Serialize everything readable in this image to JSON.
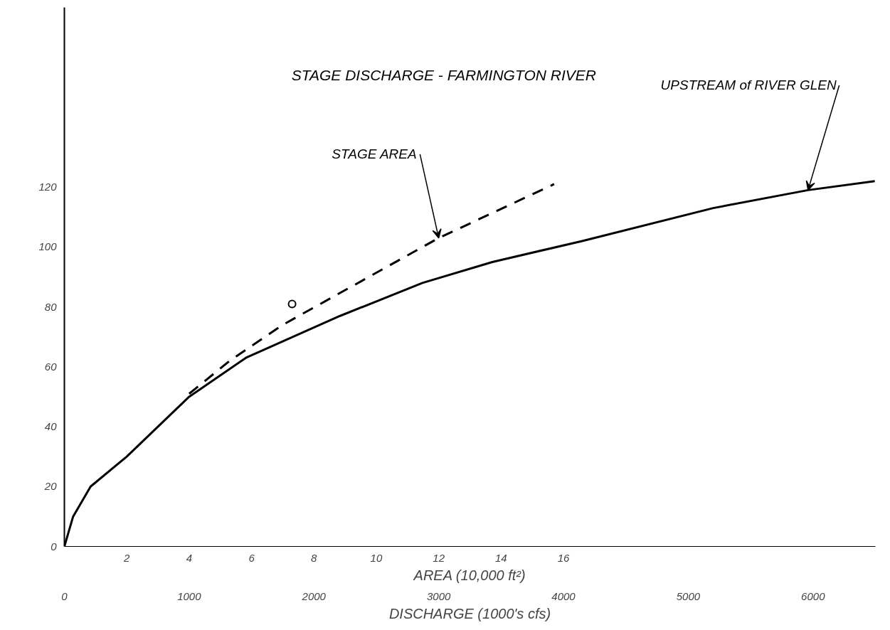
{
  "chart_data": {
    "type": "line",
    "title": "STAGE DISCHARGE - FARMINGTON RIVER",
    "xlabel": "DISCHARGE (1000's cfs)",
    "x2label": "AREA (10,000 ft²)",
    "xlim": [
      0,
      6500
    ],
    "xticks": [
      0,
      1000,
      2000,
      3000,
      4000,
      5000,
      6000
    ],
    "x2lim": [
      0,
      26
    ],
    "x2ticks": [
      2,
      4,
      6,
      8,
      10,
      12,
      14,
      16
    ],
    "ylim": [
      0,
      180
    ],
    "yticks": [
      0,
      20,
      40,
      60,
      80,
      100,
      120
    ],
    "grid": false,
    "series": [
      {
        "color": "#000000",
        "line_style": "solid",
        "x": [
          0,
          70,
          210,
          500,
          1000,
          1455,
          2210,
          2870,
          3430,
          4150,
          5200,
          5960,
          6495
        ],
        "values": [
          0,
          10,
          20,
          30,
          50,
          63,
          77,
          88,
          95,
          102,
          113,
          119,
          122
        ]
      },
      {
        "type": "line",
        "axis": "x2",
        "color": "#000000",
        "line_style": "dashed",
        "x": [
          4,
          5.3,
          7,
          12,
          15.7
        ],
        "values": [
          51,
          62,
          74,
          103,
          121
        ]
      },
      {
        "type": "scatter",
        "axis": "x2",
        "color": "#000000",
        "marker": "circle",
        "x": [
          7.3
        ],
        "values": [
          81
        ]
      }
    ],
    "annotations": [
      {
        "text": "UPSTREAM of RIVER GLEN",
        "x": 5960,
        "y": 119
      },
      {
        "text": "STAGE AREA",
        "x": 3000,
        "y": 103
      }
    ]
  }
}
